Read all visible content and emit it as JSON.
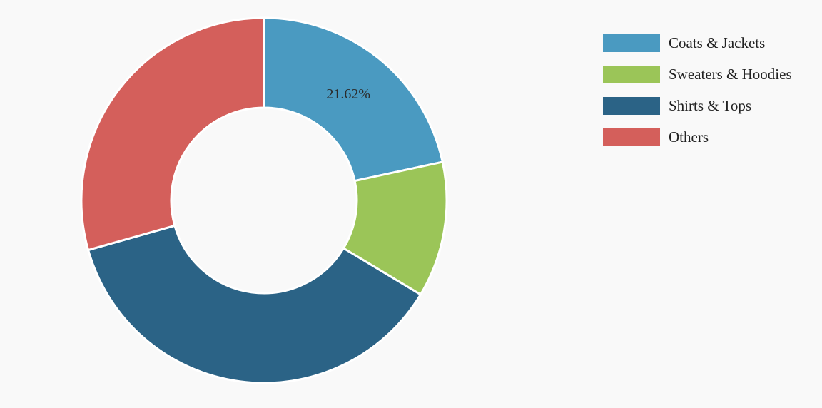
{
  "chart_data": {
    "type": "pie",
    "variant": "donut",
    "title": "",
    "categories": [
      "Coats & Jackets",
      "Sweaters & Hoodies",
      "Shirts & Tops",
      "Others"
    ],
    "values": [
      21.62,
      12.0,
      37.0,
      29.38
    ],
    "colors": [
      "#4a9ac1",
      "#9bc558",
      "#2b6386",
      "#d45f5b"
    ],
    "data_labels": [
      "21.62%",
      "",
      "",
      ""
    ],
    "legend_position": "top-right"
  },
  "legend": {
    "items": [
      {
        "label": "Coats & Jackets",
        "color": "#4a9ac1"
      },
      {
        "label": "Sweaters & Hoodies",
        "color": "#9bc558"
      },
      {
        "label": "Shirts & Tops",
        "color": "#2b6386"
      },
      {
        "label": "Others",
        "color": "#d45f5b"
      }
    ]
  }
}
